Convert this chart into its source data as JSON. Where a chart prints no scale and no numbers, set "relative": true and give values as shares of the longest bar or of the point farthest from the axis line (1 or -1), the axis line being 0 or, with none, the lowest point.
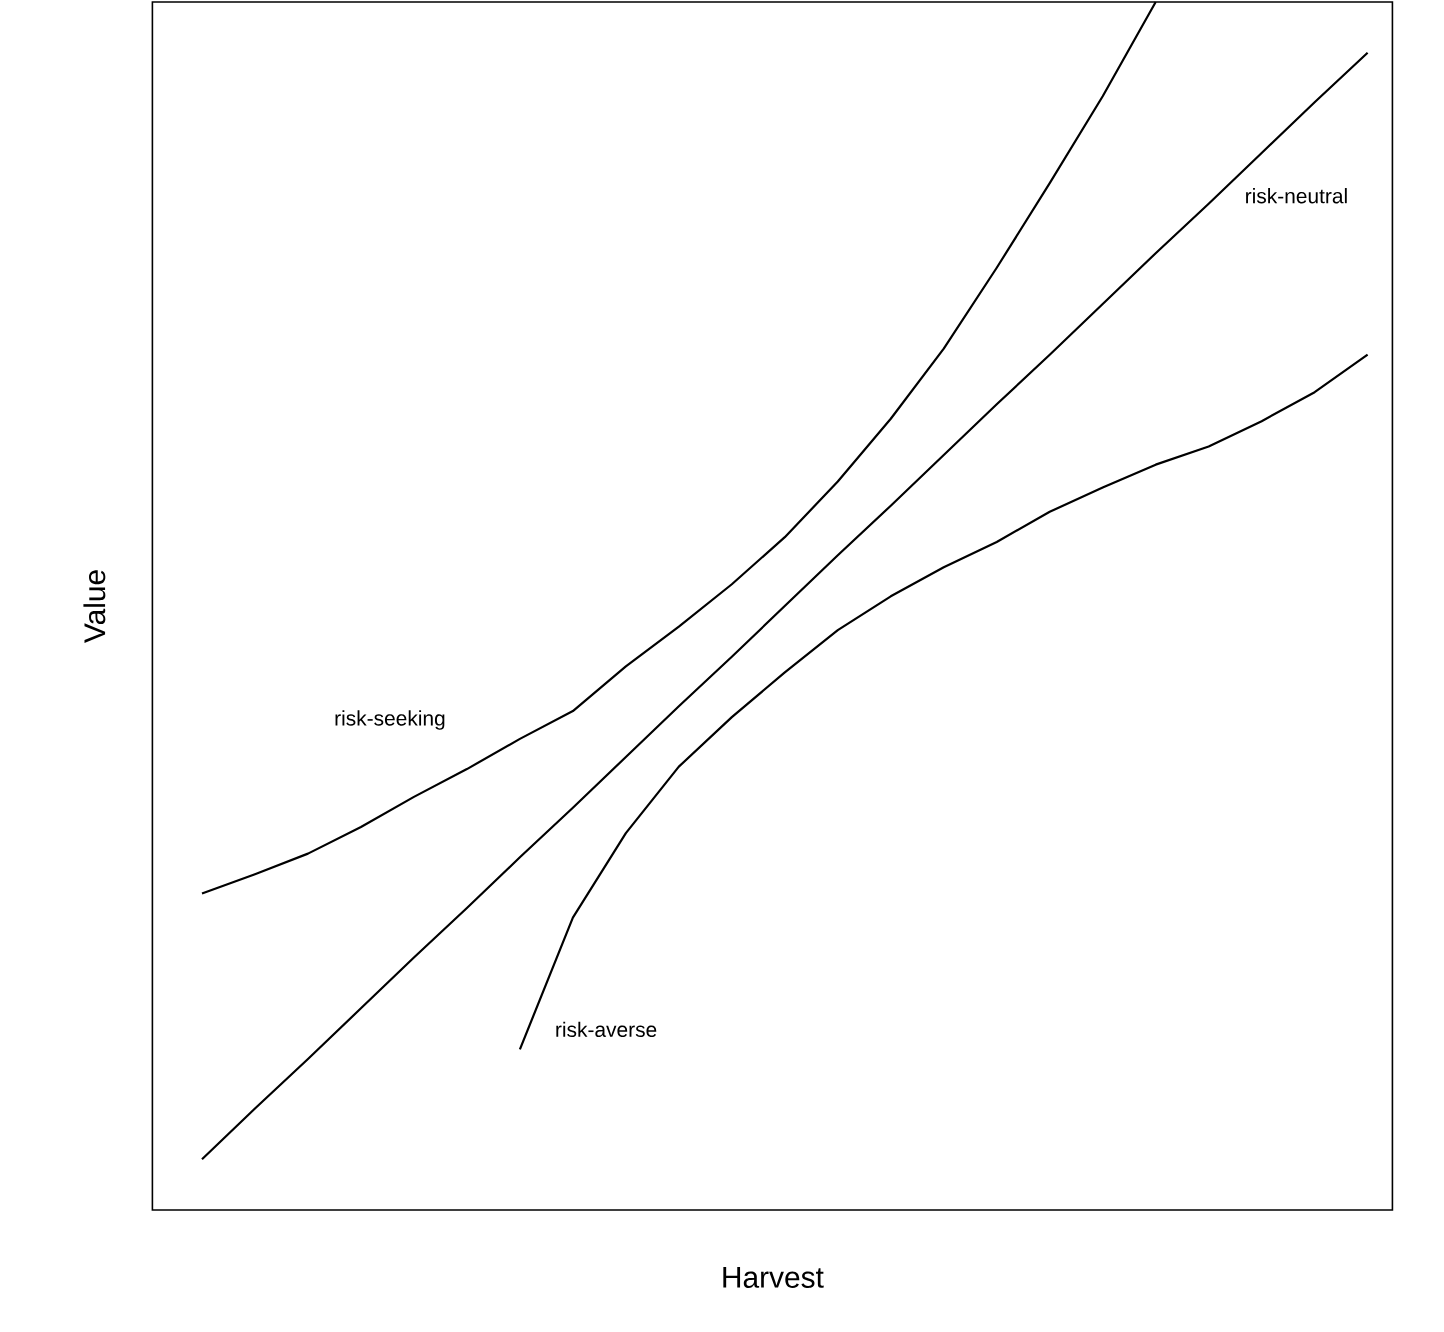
{
  "chart_data": {
    "type": "line",
    "relative": true,
    "xlabel": "Harvest",
    "ylabel": "Value",
    "marker": "none",
    "line_style": "solid",
    "categories": [
      null,
      null,
      null,
      null,
      null,
      null,
      null,
      null,
      null,
      null,
      null,
      null,
      null,
      null,
      null,
      null,
      null,
      null,
      null,
      null,
      null,
      null,
      null
    ],
    "series": [
      {
        "name": "risk-seeking",
        "color": "#000000",
        "values": [
          0.262,
          0.278,
          0.295,
          0.317,
          0.342,
          0.365,
          0.39,
          0.413,
          0.45,
          0.483,
          0.518,
          0.557,
          0.603,
          0.655,
          0.713,
          0.78,
          0.85,
          0.922,
          1.0,
          null,
          null,
          null,
          null
        ]
      },
      {
        "name": "risk-neutral",
        "color": "#000000",
        "values": [
          0.042,
          0.084,
          0.125,
          0.167,
          0.209,
          0.25,
          0.292,
          0.333,
          0.375,
          0.417,
          0.458,
          0.5,
          0.542,
          0.583,
          0.625,
          0.667,
          0.708,
          0.75,
          0.792,
          0.833,
          0.875,
          0.917,
          0.958
        ]
      },
      {
        "name": "risk-averse",
        "color": "#000000",
        "values": [
          null,
          null,
          null,
          null,
          null,
          null,
          0.133,
          0.242,
          0.312,
          0.367,
          0.408,
          0.445,
          0.48,
          0.508,
          0.532,
          0.553,
          0.578,
          0.598,
          0.617,
          0.632,
          0.653,
          0.677,
          0.708
        ]
      }
    ]
  }
}
